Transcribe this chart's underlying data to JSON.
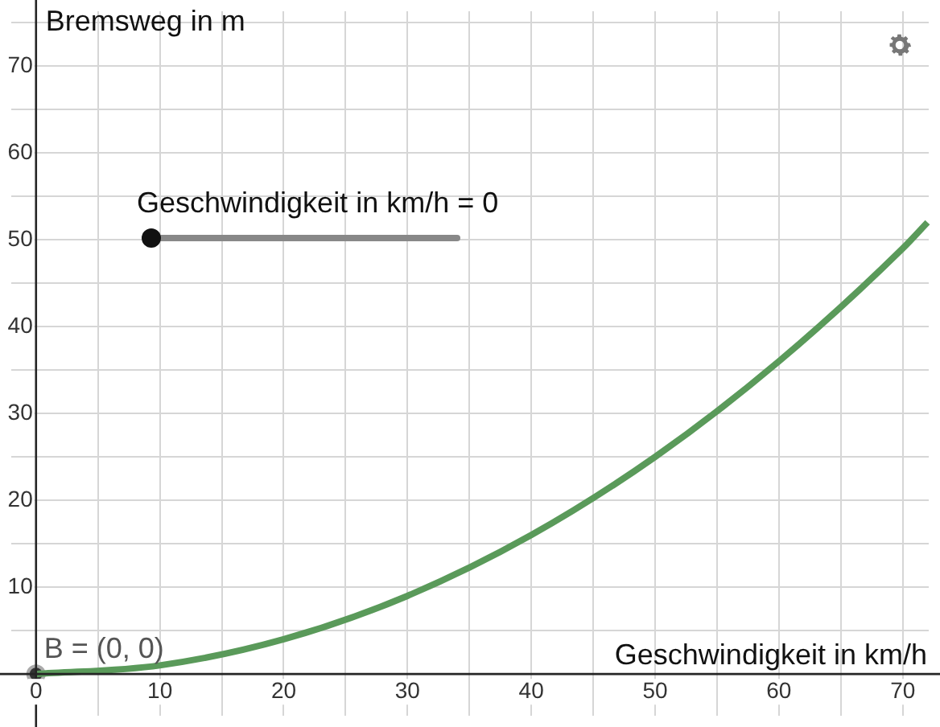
{
  "chart_data": {
    "type": "line",
    "xlabel": "Geschwindigkeit in km/h",
    "ylabel": "Bremsweg in m",
    "xlim": [
      -2,
      72.1
    ],
    "ylim": [
      -4.8,
      76.3
    ],
    "xticks": [
      0,
      {
        "value": 5,
        "label": null
      },
      10,
      {
        "value": 15,
        "label": null
      },
      20,
      {
        "value": 25,
        "label": null
      },
      30,
      {
        "value": 35,
        "label": null
      },
      40,
      {
        "value": 45,
        "label": null
      },
      50,
      {
        "value": 55,
        "label": null
      },
      60,
      {
        "value": 65,
        "label": null
      },
      70
    ],
    "yticks": [
      {
        "value": 0,
        "label": null
      },
      {
        "value": 5,
        "label": null
      },
      10,
      {
        "value": 15,
        "label": null
      },
      20,
      {
        "value": 25,
        "label": null
      },
      30,
      {
        "value": 35,
        "label": null
      },
      40,
      {
        "value": 45,
        "label": null
      },
      50,
      {
        "value": 55,
        "label": null
      },
      60,
      {
        "value": 65,
        "label": null
      },
      70,
      {
        "value": 75,
        "label": null
      }
    ],
    "grid": true,
    "series": [
      {
        "type": "line",
        "color": "#5a9a5a",
        "x": [
          0,
          10,
          20,
          30,
          40,
          50,
          60,
          70,
          72
        ],
        "values": [
          0,
          1,
          4,
          9,
          16,
          25,
          36,
          49,
          52
        ],
        "marker": "none"
      },
      {
        "type": "scatter",
        "color": "#333333",
        "x": [
          0
        ],
        "values": [
          0
        ],
        "marker": "circle"
      }
    ],
    "annotations": [
      "Geschwindigkeit in km/h = 0",
      {
        "text": "B = (0, 0)",
        "x": 0,
        "y": 0
      }
    ]
  }
}
